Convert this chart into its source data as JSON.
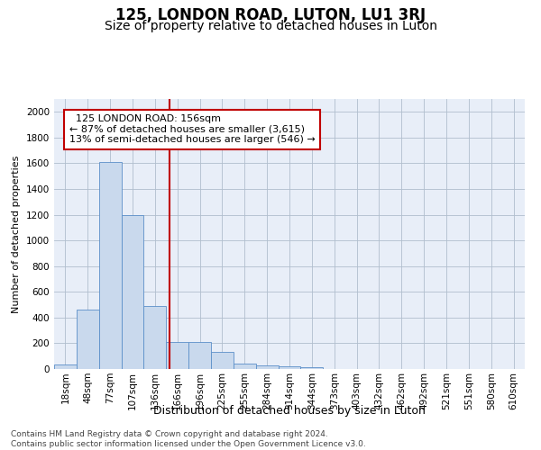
{
  "title": "125, LONDON ROAD, LUTON, LU1 3RJ",
  "subtitle": "Size of property relative to detached houses in Luton",
  "xlabel": "Distribution of detached houses by size in Luton",
  "ylabel": "Number of detached properties",
  "bar_labels": [
    "18sqm",
    "48sqm",
    "77sqm",
    "107sqm",
    "136sqm",
    "166sqm",
    "196sqm",
    "225sqm",
    "255sqm",
    "284sqm",
    "314sqm",
    "344sqm",
    "373sqm",
    "403sqm",
    "432sqm",
    "462sqm",
    "492sqm",
    "521sqm",
    "551sqm",
    "580sqm",
    "610sqm"
  ],
  "bar_values": [
    35,
    460,
    1610,
    1195,
    490,
    210,
    210,
    130,
    45,
    30,
    20,
    15,
    0,
    0,
    0,
    0,
    0,
    0,
    0,
    0,
    0
  ],
  "bar_color": "#c9d9ed",
  "bar_edge_color": "#5b8fc9",
  "vline_color": "#c00000",
  "annotation_text": "  125 LONDON ROAD: 156sqm\n← 87% of detached houses are smaller (3,615)\n13% of semi-detached houses are larger (546) →",
  "annotation_box_color": "#ffffff",
  "annotation_box_edge": "#c00000",
  "ylim": [
    0,
    2100
  ],
  "yticks": [
    0,
    200,
    400,
    600,
    800,
    1000,
    1200,
    1400,
    1600,
    1800,
    2000
  ],
  "bg_color": "#e8eef8",
  "footer": "Contains HM Land Registry data © Crown copyright and database right 2024.\nContains public sector information licensed under the Open Government Licence v3.0.",
  "title_fontsize": 12,
  "subtitle_fontsize": 10,
  "xlabel_fontsize": 9,
  "ylabel_fontsize": 8,
  "tick_fontsize": 7.5,
  "annotation_fontsize": 8,
  "footer_fontsize": 6.5
}
